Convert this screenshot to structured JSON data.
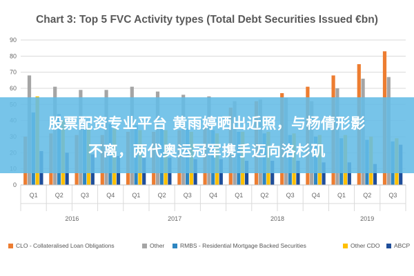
{
  "chart_data": {
    "type": "bar",
    "title": "Chart 3: Top 5 FVC Activity types (Total Debt Securities Issued €bn)",
    "ylim": [
      0,
      90
    ],
    "yticks": [
      0,
      10,
      20,
      30,
      40,
      50,
      60,
      70,
      80,
      90
    ],
    "grid": true,
    "legend_position": "bottom",
    "categories": [
      "Q1",
      "Q2",
      "Q3",
      "Q4",
      "Q1",
      "Q2",
      "Q3",
      "Q4",
      "Q1",
      "Q2",
      "Q3",
      "Q4",
      "Q1",
      "Q2",
      "Q3"
    ],
    "year_groups": [
      {
        "label": "2016",
        "count": 4
      },
      {
        "label": "2017",
        "count": 4
      },
      {
        "label": "2018",
        "count": 4
      },
      {
        "label": "2019",
        "count": 3
      }
    ],
    "series": [
      {
        "name": "CLO - Collateralised Loan Obligations",
        "color": "#ED7D31",
        "values": [
          30,
          32,
          31,
          31,
          33,
          33,
          34,
          36,
          48,
          52,
          57,
          61,
          68,
          75,
          83
        ]
      },
      {
        "name": "Other",
        "color": "#A5A5A5",
        "values": [
          68,
          61,
          59,
          59,
          61,
          58,
          56,
          55,
          52,
          53,
          54,
          52,
          60,
          66,
          67
        ]
      },
      {
        "name": "RMBS - Residential Mortgage Backed Securities",
        "color": "#2E86C1",
        "values": [
          45,
          44,
          40,
          38,
          37,
          36,
          35,
          34,
          33,
          32,
          31,
          30,
          29,
          28,
          27
        ]
      },
      {
        "name": "Other CDO",
        "color": "#FFC000",
        "values": [
          55,
          40,
          36,
          35,
          34,
          34,
          33,
          32,
          33,
          33,
          32,
          31,
          31,
          30,
          29
        ]
      },
      {
        "name": "ABCP",
        "color": "#1F4E9A",
        "values": [
          21,
          20,
          19,
          18,
          17,
          17,
          16,
          16,
          15,
          15,
          15,
          14,
          14,
          13,
          25
        ]
      }
    ]
  },
  "overlay": {
    "line1": "股票配资专业平台 黄雨婷晒出近照，与杨倩形影",
    "line2": "不离，两代奥运冠军携手迈向洛杉矶"
  }
}
